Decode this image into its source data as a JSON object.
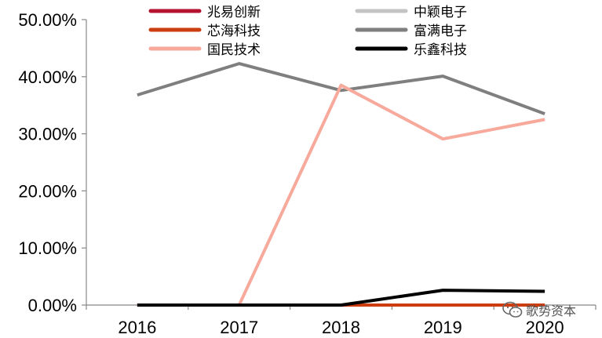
{
  "chart_data": {
    "type": "line",
    "title": "",
    "xlabel": "",
    "ylabel": "",
    "categories": [
      "2016",
      "2017",
      "2018",
      "2019",
      "2020"
    ],
    "ylim": [
      0,
      50
    ],
    "y_ticks": [
      "0.00%",
      "10.00%",
      "20.00%",
      "30.00%",
      "40.00%",
      "50.00%"
    ],
    "grid": false,
    "legend_position": "top",
    "series": [
      {
        "name": "兆易创新",
        "color": "#b5122f",
        "values": [
          0,
          0,
          0,
          0,
          0
        ]
      },
      {
        "name": "中颖电子",
        "color": "#c4c4c4",
        "values": [
          0,
          0,
          0,
          0,
          0
        ]
      },
      {
        "name": "芯海科技",
        "color": "#cc3d10",
        "values": [
          0,
          0,
          0,
          0,
          0
        ]
      },
      {
        "name": "富满电子",
        "color": "#7f7f7f",
        "values": [
          36.8,
          42.3,
          37.6,
          40.1,
          33.5
        ]
      },
      {
        "name": "国民技术",
        "color": "#f7a99b",
        "values": [
          0,
          0,
          38.5,
          29.1,
          32.5
        ]
      },
      {
        "name": "乐鑫科技",
        "color": "#000000",
        "values": [
          0,
          0,
          0,
          2.6,
          2.4
        ]
      }
    ]
  },
  "watermark": {
    "text": "歌势资本",
    "icon": "wechat-icon"
  }
}
